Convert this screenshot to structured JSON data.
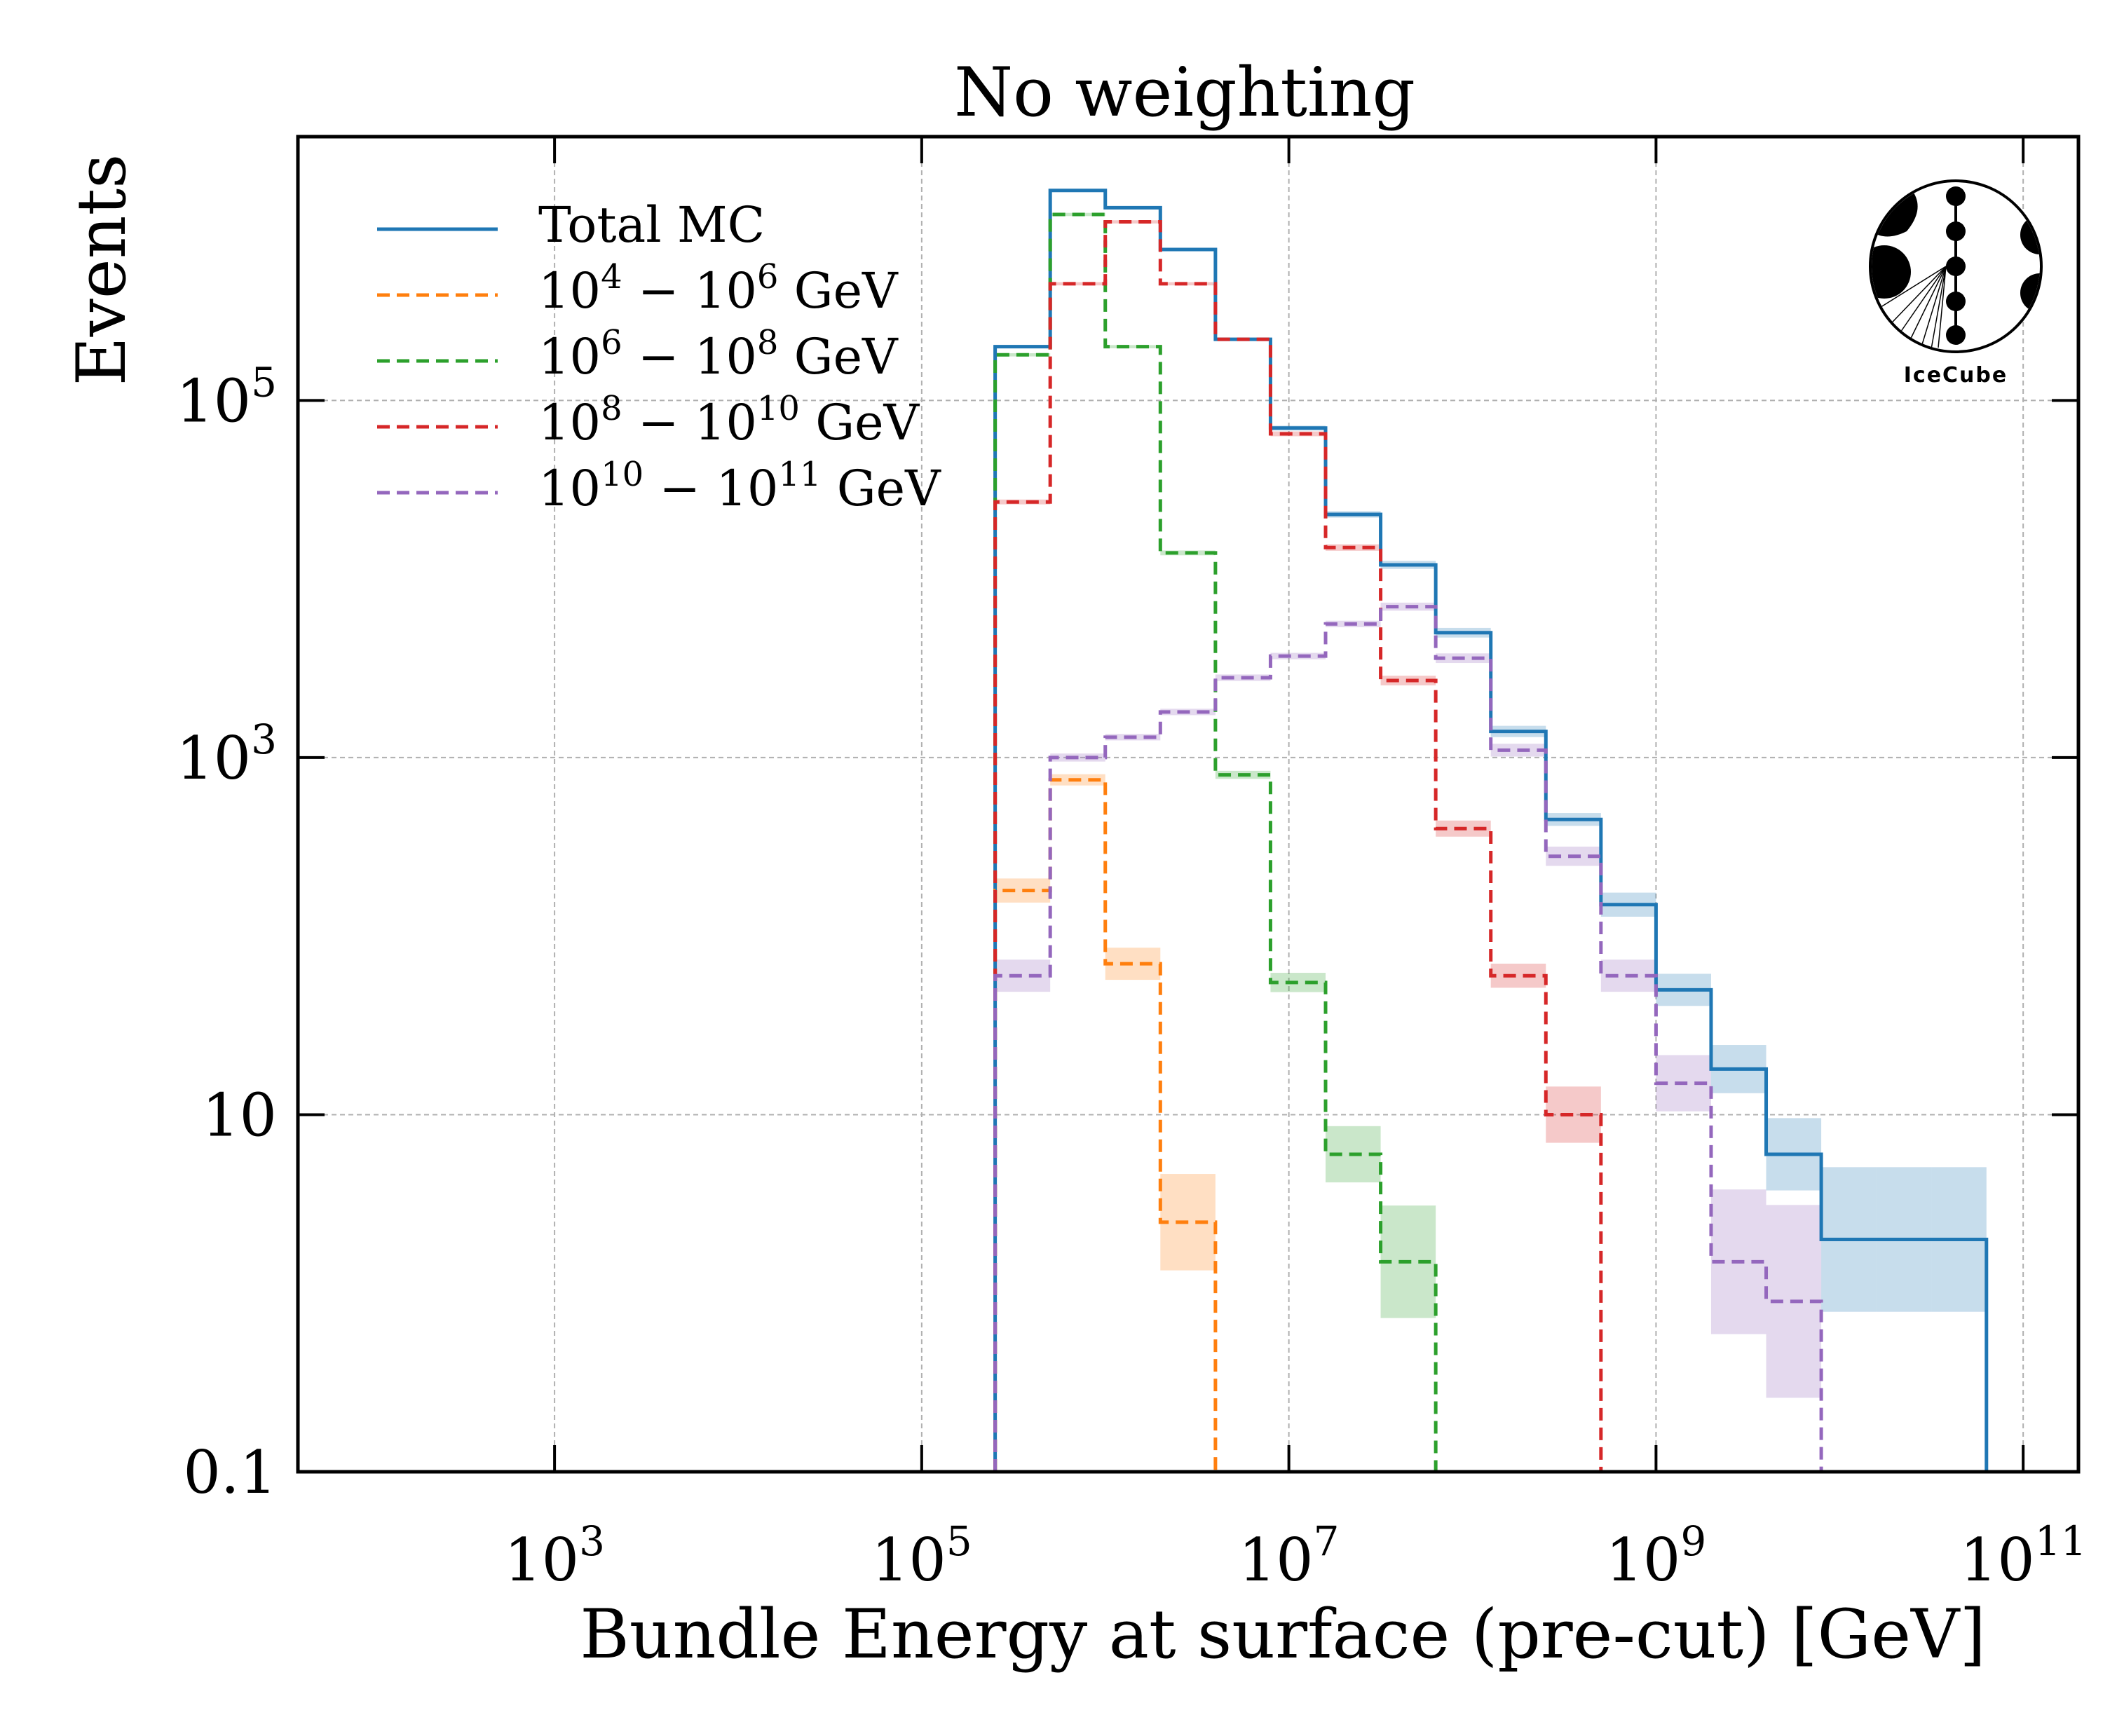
{
  "chart_data": {
    "type": "histogram-step",
    "title": "No weighting",
    "xlabel": "Bundle Energy at surface (pre-cut) [GeV]",
    "ylabel": "Events",
    "xscale": "log",
    "yscale": "log",
    "xlim": [
      40,
      200000000000.0
    ],
    "ylim": [
      0.1,
      3000000
    ],
    "x_ticks": [
      {
        "value": 1000,
        "base": "10",
        "exp": "3"
      },
      {
        "value": 100000,
        "base": "10",
        "exp": "5"
      },
      {
        "value": 10000000,
        "base": "10",
        "exp": "7"
      },
      {
        "value": 1000000000,
        "base": "10",
        "exp": "9"
      },
      {
        "value": 100000000000,
        "base": "10",
        "exp": "11"
      }
    ],
    "y_ticks": [
      {
        "value": 0.1,
        "label": "0.1"
      },
      {
        "value": 10,
        "label": "10"
      },
      {
        "value": 1000,
        "label": "10",
        "exp": "3"
      },
      {
        "value": 100000,
        "label": "10",
        "exp": "5"
      }
    ],
    "grid": true,
    "legend_position": "top-left",
    "logo_text": "IceCube",
    "bin_edges_log10": [
      5.4,
      5.7,
      6.0,
      6.3,
      6.6,
      6.9,
      7.2,
      7.5,
      7.8,
      8.1,
      8.4,
      8.7,
      9.0,
      9.3,
      9.6,
      9.9,
      10.2,
      10.5,
      10.8
    ],
    "series": [
      {
        "name": "Total MC",
        "color": "#1f77b4",
        "dashed": false,
        "values": [
          200000,
          1500000,
          1200000,
          700000,
          220000,
          70000,
          23000,
          12000,
          5000,
          1400,
          450,
          150,
          50,
          18,
          6,
          2,
          2,
          2,
          null
        ],
        "err": [
          0.02,
          0.02,
          0.02,
          0.02,
          0.02,
          0.03,
          0.04,
          0.05,
          0.06,
          0.07,
          0.08,
          0.15,
          0.2,
          0.3,
          0.45,
          0.9,
          0.9,
          0.9,
          0
        ]
      },
      {
        "name": "10^4 - 10^6 GeV",
        "label_parts": {
          "a": "10",
          "ae": "4",
          "b": "10",
          "be": "6",
          "unit": "GeV"
        },
        "color": "#ff7f0e",
        "dashed": true,
        "values": [
          180,
          750,
          70,
          2.5,
          null,
          null,
          null,
          null,
          null,
          null,
          null,
          null,
          null,
          null,
          null,
          null,
          null,
          null,
          null
        ],
        "err": [
          0.15,
          0.07,
          0.2,
          0.6,
          0,
          0,
          0,
          0,
          0,
          0,
          0,
          0,
          0,
          0,
          0,
          0,
          0,
          0,
          0
        ]
      },
      {
        "name": "10^6 - 10^8 GeV",
        "label_parts": {
          "a": "10",
          "ae": "6",
          "b": "10",
          "be": "8",
          "unit": "GeV"
        },
        "color": "#2ca02c",
        "dashed": true,
        "values": [
          180000,
          1100000,
          200000,
          14000,
          800,
          55,
          6,
          1.5,
          null,
          null,
          null,
          null,
          null,
          null,
          null,
          null,
          null,
          null,
          null
        ],
        "err": [
          0.02,
          0.02,
          0.02,
          0.03,
          0.05,
          0.12,
          0.35,
          0.7,
          0,
          0,
          0,
          0,
          0,
          0,
          0,
          0,
          0,
          0,
          0
        ]
      },
      {
        "name": "10^8 - 10^10 GeV",
        "label_parts": {
          "a": "10",
          "ae": "8",
          "b": "10",
          "be": "10",
          "unit": "GeV"
        },
        "color": "#d62728",
        "dashed": true,
        "values": [
          27000,
          450000,
          1000000,
          450000,
          220000,
          65000,
          15000,
          2700,
          400,
          60,
          10,
          null,
          null,
          null,
          null,
          null,
          null,
          null,
          null
        ],
        "err": [
          0.03,
          0.02,
          0.02,
          0.02,
          0.02,
          0.03,
          0.04,
          0.06,
          0.1,
          0.15,
          0.35,
          0,
          0,
          0,
          0,
          0,
          0,
          0,
          0
        ]
      },
      {
        "name": "10^10 - 10^11 GeV",
        "label_parts": {
          "a": "10",
          "ae": "10",
          "b": "10",
          "be": "11",
          "unit": "GeV"
        },
        "color": "#9467bd",
        "dashed": true,
        "values": [
          60,
          1000,
          1300,
          1800,
          2800,
          3700,
          5600,
          7000,
          3600,
          1100,
          280,
          60,
          15,
          1.5,
          0.9,
          null,
          null,
          null,
          null
        ],
        "err": [
          0.2,
          0.05,
          0.04,
          0.04,
          0.04,
          0.04,
          0.04,
          0.05,
          0.06,
          0.08,
          0.12,
          0.2,
          0.35,
          0.9,
          1.2,
          0,
          0,
          0,
          0
        ]
      }
    ]
  }
}
